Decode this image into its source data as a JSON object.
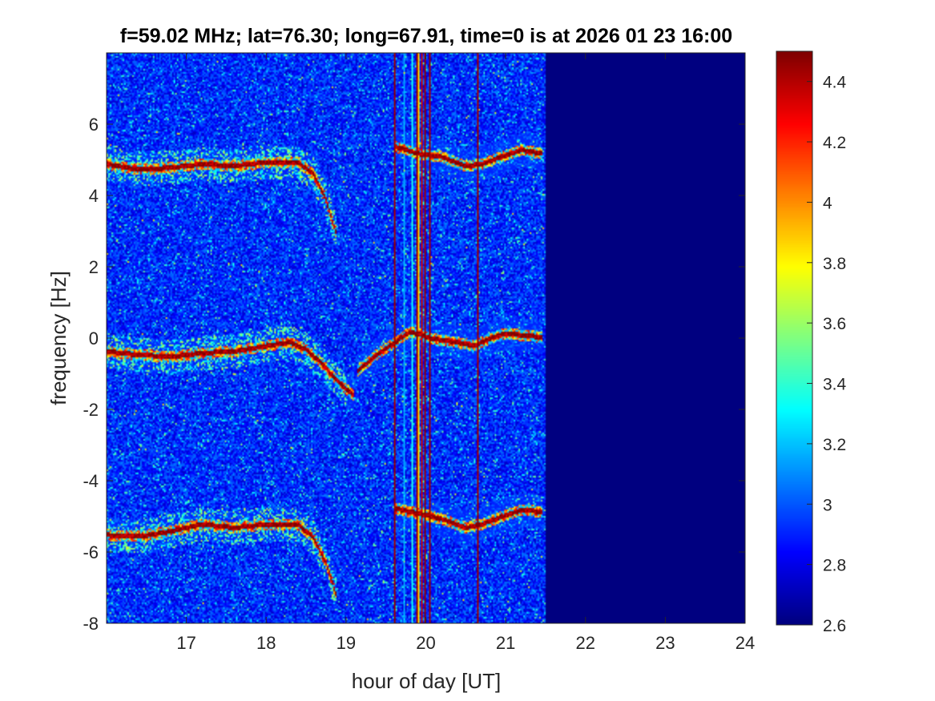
{
  "chart_data": {
    "type": "heatmap",
    "title": "f=59.02 MHz;  lat=76.30; long=67.91, time=0 is at 2026 01 23 16:00",
    "xlabel": "hour of day [UT]",
    "ylabel": "frequency [Hz]",
    "xlim": [
      16,
      24
    ],
    "ylim": [
      -8,
      8
    ],
    "xticks": [
      17,
      18,
      19,
      20,
      21,
      22,
      23,
      24
    ],
    "yticks": [
      -8,
      -6,
      -4,
      -2,
      0,
      2,
      4,
      6
    ],
    "colormap": "jet",
    "clim": [
      2.6,
      4.5
    ],
    "colorbar_ticks": [
      2.6,
      2.8,
      3,
      3.2,
      3.4,
      3.6,
      3.8,
      4,
      4.2,
      4.4
    ],
    "background_level": 2.9,
    "data_end_hour": 21.5,
    "fill_value_after_end": 2.6,
    "traces": [
      {
        "name": "upper echo (early)",
        "hours": [
          16.0,
          16.4,
          16.8,
          17.2,
          17.6,
          18.0,
          18.4,
          18.6,
          18.75,
          18.87
        ],
        "freq": [
          4.9,
          4.75,
          4.8,
          4.9,
          4.85,
          4.95,
          4.95,
          4.6,
          3.9,
          3.0
        ]
      },
      {
        "name": "central echo (early)",
        "hours": [
          16.0,
          16.4,
          16.8,
          17.2,
          17.6,
          18.0,
          18.3,
          18.5,
          18.7,
          18.9,
          19.1
        ],
        "freq": [
          -0.35,
          -0.45,
          -0.5,
          -0.4,
          -0.35,
          -0.2,
          -0.1,
          -0.3,
          -0.7,
          -1.2,
          -1.6
        ]
      },
      {
        "name": "lower echo (early)",
        "hours": [
          16.0,
          16.4,
          16.8,
          17.2,
          17.6,
          18.0,
          18.4,
          18.6,
          18.75,
          18.88
        ],
        "freq": [
          -5.5,
          -5.55,
          -5.4,
          -5.2,
          -5.3,
          -5.2,
          -5.2,
          -5.6,
          -6.3,
          -7.2
        ]
      },
      {
        "name": "upper echo (late)",
        "hours": [
          19.6,
          19.9,
          20.2,
          20.5,
          20.7,
          21.0,
          21.2,
          21.45
        ],
        "freq": [
          5.4,
          5.2,
          5.1,
          4.85,
          4.9,
          5.15,
          5.3,
          5.2
        ]
      },
      {
        "name": "central echo (late)",
        "hours": [
          19.15,
          19.35,
          19.55,
          19.8,
          20.1,
          20.4,
          20.6,
          20.8,
          21.0,
          21.2,
          21.45
        ],
        "freq": [
          -0.9,
          -0.5,
          -0.2,
          0.2,
          0.0,
          -0.1,
          -0.2,
          0.0,
          0.15,
          0.1,
          0.05
        ]
      },
      {
        "name": "lower echo (late)",
        "hours": [
          19.6,
          19.9,
          20.2,
          20.5,
          20.7,
          21.0,
          21.2,
          21.45
        ],
        "freq": [
          -4.75,
          -4.9,
          -5.05,
          -5.3,
          -5.2,
          -4.95,
          -4.8,
          -4.85
        ]
      }
    ],
    "vertical_lines": [
      {
        "hour": 19.6,
        "level": 4.5
      },
      {
        "hour": 19.71,
        "level": 3.2
      },
      {
        "hour": 19.82,
        "level": 3.4
      },
      {
        "hour": 19.87,
        "level": 4.5
      },
      {
        "hour": 19.9,
        "level": 3.9
      },
      {
        "hour": 19.93,
        "level": 4.4
      },
      {
        "hour": 19.98,
        "level": 4.5
      },
      {
        "hour": 20.04,
        "level": 4.5
      },
      {
        "hour": 20.64,
        "level": 4.5
      }
    ]
  }
}
